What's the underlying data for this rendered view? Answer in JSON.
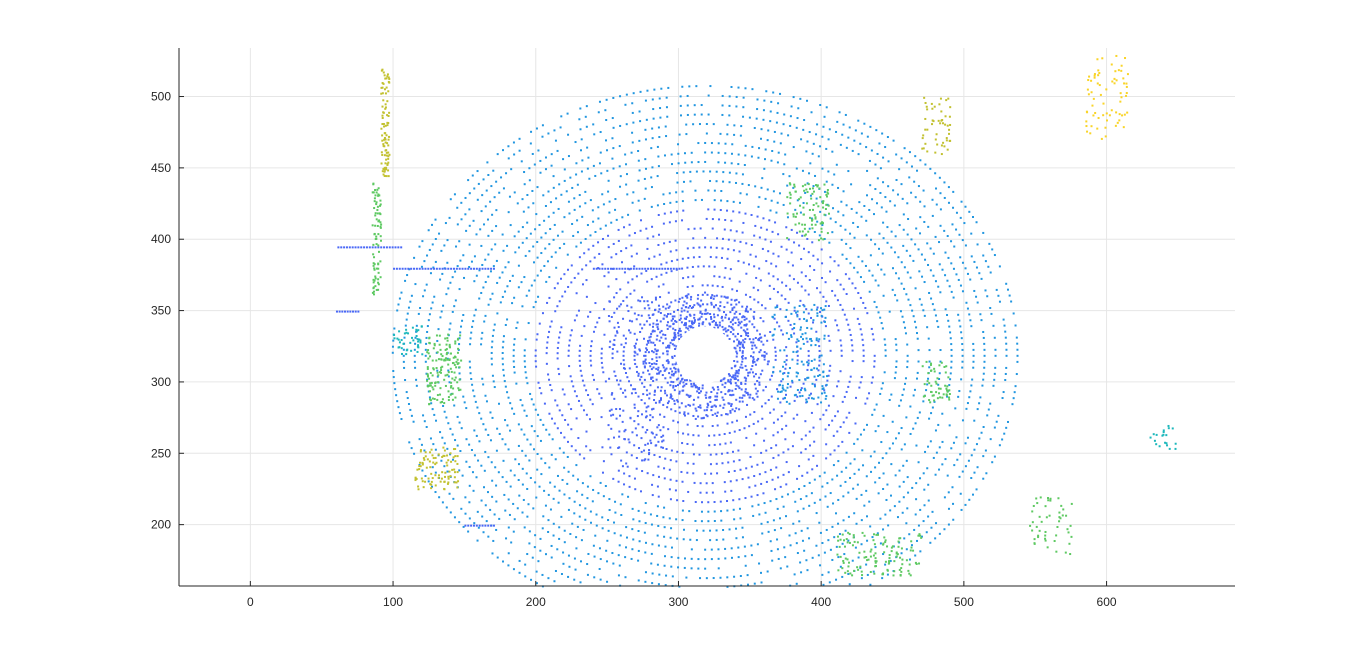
{
  "chart_data": {
    "type": "scatter",
    "title": "",
    "xlabel": "",
    "ylabel": "",
    "xlim": [
      -50,
      690
    ],
    "ylim": [
      157,
      534
    ],
    "xticks": [
      0,
      100,
      200,
      300,
      400,
      500,
      600
    ],
    "yticks": [
      200,
      250,
      300,
      350,
      400,
      450,
      500
    ],
    "grid": true,
    "colormap": [
      "#3e26a8",
      "#4a68f6",
      "#2196e0",
      "#1db8bc",
      "#5ec962",
      "#c2c130",
      "#f9d428"
    ],
    "center": {
      "x": 318,
      "y": 319,
      "inner_radius": 20,
      "outer_radius": 70
    },
    "series": [
      {
        "color": "#4a68f6",
        "segments": [
          [
            [
              61,
              395
            ],
            [
              105,
              395
            ]
          ],
          [
            [
              100,
              380
            ],
            [
              170,
              380
            ]
          ],
          [
            [
              240,
              380
            ],
            [
              300,
              380
            ]
          ],
          [
            [
              150,
              200
            ],
            [
              170,
              200
            ]
          ],
          [
            [
              60,
              350
            ],
            [
              75,
              350
            ]
          ]
        ]
      }
    ],
    "clusters": [
      {
        "x": 94,
        "y": 480,
        "dx": 3,
        "dy": 40,
        "n": 90,
        "color": "#c2c130"
      },
      {
        "x": 88,
        "y": 400,
        "dx": 3,
        "dy": 40,
        "n": 80,
        "color": "#5ec962"
      },
      {
        "x": 135,
        "y": 310,
        "dx": 12,
        "dy": 25,
        "n": 140,
        "color": "#5ec962"
      },
      {
        "x": 130,
        "y": 240,
        "dx": 15,
        "dy": 15,
        "n": 90,
        "color": "#c2c130"
      },
      {
        "x": 110,
        "y": 330,
        "dx": 10,
        "dy": 10,
        "n": 40,
        "color": "#1db8bc"
      },
      {
        "x": 390,
        "y": 420,
        "dx": 15,
        "dy": 20,
        "n": 90,
        "color": "#5ec962"
      },
      {
        "x": 385,
        "y": 320,
        "dx": 20,
        "dy": 35,
        "n": 150,
        "color": "#2196e0"
      },
      {
        "x": 480,
        "y": 300,
        "dx": 10,
        "dy": 15,
        "n": 50,
        "color": "#5ec962"
      },
      {
        "x": 480,
        "y": 480,
        "dx": 10,
        "dy": 20,
        "n": 50,
        "color": "#c2c130"
      },
      {
        "x": 600,
        "y": 500,
        "dx": 15,
        "dy": 30,
        "n": 70,
        "color": "#f9d428"
      },
      {
        "x": 440,
        "y": 180,
        "dx": 30,
        "dy": 15,
        "n": 120,
        "color": "#5ec962"
      },
      {
        "x": 560,
        "y": 200,
        "dx": 15,
        "dy": 20,
        "n": 50,
        "color": "#5ec962"
      },
      {
        "x": 270,
        "y": 300,
        "dx": 20,
        "dy": 60,
        "n": 120,
        "color": "#4a68f6"
      },
      {
        "x": 640,
        "y": 260,
        "dx": 10,
        "dy": 10,
        "n": 20,
        "color": "#1db8bc"
      }
    ],
    "rings": {
      "count": 26,
      "start_radius": 24,
      "step": 7,
      "color_near": "#4a68f6",
      "color_far": "#2196e0"
    }
  }
}
